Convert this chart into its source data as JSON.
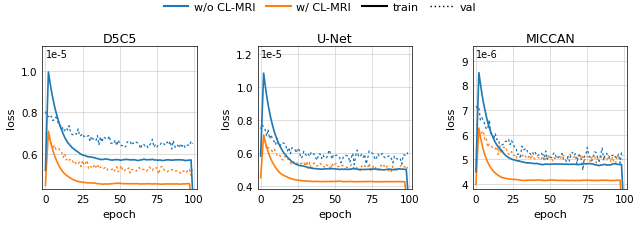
{
  "subplots": [
    {
      "title": "D5C5",
      "ylabel": "loss",
      "xlabel": "epoch",
      "scale_label": "1e-5",
      "ylim": [
        4.3e-06,
        1.12e-05
      ],
      "yticks": [
        6e-06,
        8e-06,
        1e-05
      ],
      "ytick_labels": [
        "0.6",
        "0.8",
        "1.0"
      ],
      "xlim": [
        -2,
        102
      ],
      "xticks": [
        0,
        25,
        50,
        75,
        100
      ]
    },
    {
      "title": "U-Net",
      "ylabel": "loss",
      "xlabel": "epoch",
      "scale_label": "1e-5",
      "ylim": [
        3.8e-06,
        1.25e-05
      ],
      "yticks": [
        4e-06,
        6e-06,
        8e-06,
        1e-05,
        1.2e-05
      ],
      "ytick_labels": [
        "0.4",
        "0.6",
        "0.8",
        "1.0",
        "1.2"
      ],
      "xlim": [
        -2,
        102
      ],
      "xticks": [
        0,
        25,
        50,
        75,
        100
      ]
    },
    {
      "title": "MICCAN",
      "ylabel": "loss",
      "xlabel": "epoch",
      "scale_label": "1e-6",
      "ylim": [
        3.8e-06,
        9.6e-06
      ],
      "yticks": [
        4e-06,
        5e-06,
        6e-06,
        7e-06,
        8e-06,
        9e-06
      ],
      "ytick_labels": [
        "4",
        "5",
        "6",
        "7",
        "8",
        "9"
      ],
      "xlim": [
        -2,
        102
      ],
      "xticks": [
        0,
        25,
        50,
        75,
        100
      ]
    }
  ],
  "colors": {
    "blue": "#1f77b4",
    "orange": "#ff7f0e",
    "black": "#000000"
  }
}
